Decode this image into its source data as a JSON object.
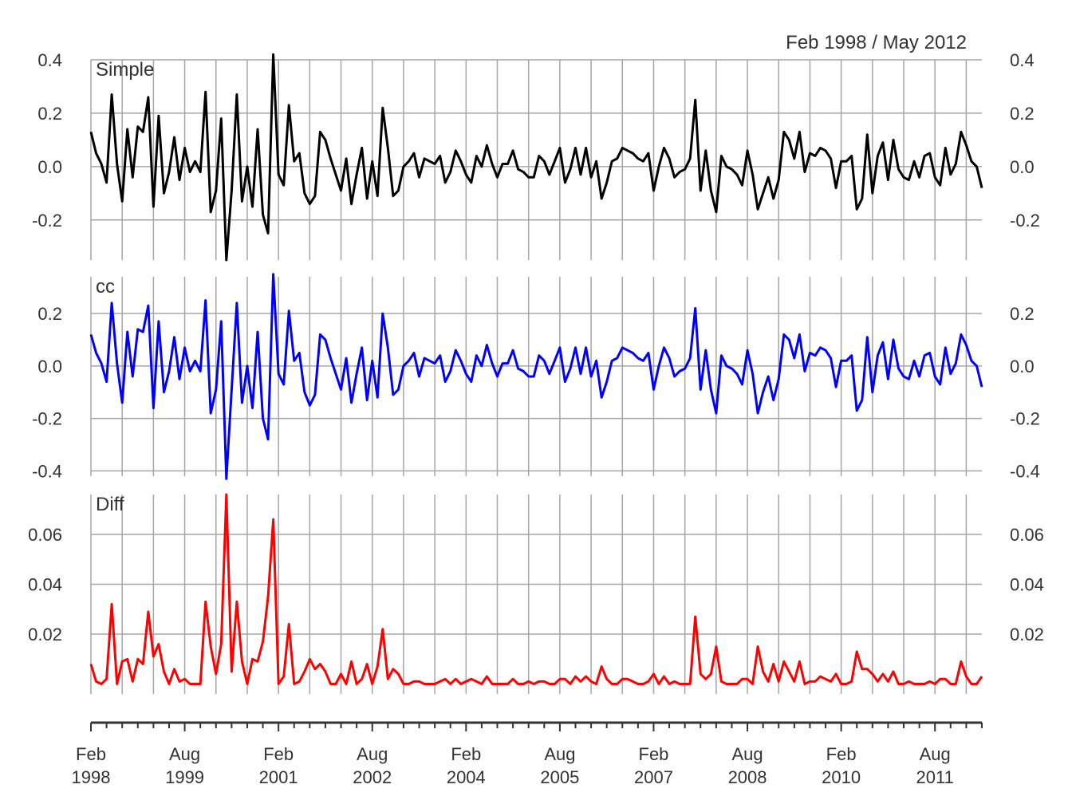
{
  "range_label": "Feb 1998 / May 2012",
  "chart_data": [
    {
      "type": "line",
      "panel": "Simple",
      "color": "#000000",
      "ylim": [
        -0.35,
        0.4
      ],
      "yticks": [
        -0.2,
        0.0,
        0.2,
        0.4
      ],
      "ytick_labels": [
        "-0.2",
        "0.0",
        "0.2",
        "0.4"
      ],
      "series": [
        {
          "values": [
            0.13,
            0.05,
            0.01,
            -0.06,
            0.27,
            0.01,
            -0.13,
            0.14,
            -0.04,
            0.15,
            0.13,
            0.26,
            -0.15,
            0.19,
            -0.1,
            -0.02,
            0.11,
            -0.05,
            0.07,
            -0.02,
            0.02,
            -0.02,
            0.28,
            -0.17,
            -0.09,
            0.18,
            -0.35,
            -0.09,
            0.27,
            -0.13,
            0.0,
            -0.15,
            0.14,
            -0.18,
            -0.25,
            0.42,
            -0.03,
            -0.07,
            0.23,
            0.02,
            0.05,
            -0.1,
            -0.14,
            -0.11,
            0.13,
            0.1,
            0.03,
            -0.03,
            -0.09,
            0.03,
            -0.14,
            -0.03,
            0.07,
            -0.12,
            0.02,
            -0.11,
            0.22,
            0.07,
            -0.11,
            -0.09,
            0.0,
            0.02,
            0.05,
            -0.04,
            0.03,
            0.02,
            0.01,
            0.04,
            -0.06,
            -0.02,
            0.06,
            0.02,
            -0.03,
            -0.06,
            0.04,
            0.0,
            0.08,
            0.01,
            -0.04,
            0.01,
            0.01,
            0.06,
            -0.01,
            -0.02,
            -0.04,
            -0.04,
            0.04,
            0.02,
            -0.03,
            0.02,
            0.07,
            -0.06,
            -0.01,
            0.07,
            -0.03,
            0.07,
            -0.04,
            0.02,
            -0.12,
            -0.06,
            0.02,
            0.03,
            0.07,
            0.06,
            0.05,
            0.03,
            0.02,
            0.05,
            -0.09,
            0.0,
            0.07,
            0.03,
            -0.04,
            -0.02,
            -0.01,
            0.03,
            0.25,
            -0.09,
            0.06,
            -0.09,
            -0.17,
            0.04,
            0.0,
            -0.01,
            -0.03,
            -0.07,
            0.06,
            -0.03,
            -0.16,
            -0.1,
            -0.04,
            -0.12,
            -0.05,
            0.13,
            0.1,
            0.03,
            0.13,
            -0.02,
            0.05,
            0.04,
            0.07,
            0.06,
            0.03,
            -0.08,
            0.02,
            0.02,
            0.04,
            -0.16,
            -0.12,
            0.12,
            -0.1,
            0.04,
            0.09,
            -0.05,
            0.1,
            -0.01,
            -0.04,
            -0.05,
            0.02,
            -0.04,
            0.04,
            0.05,
            -0.04,
            -0.07,
            0.07,
            -0.03,
            0.01,
            0.13,
            0.08,
            0.02,
            0.0,
            -0.08
          ]
        }
      ]
    },
    {
      "type": "line",
      "panel": "cc",
      "color": "#0000ff",
      "ylim": [
        -0.42,
        0.34
      ],
      "yticks": [
        -0.4,
        -0.2,
        0.0,
        0.2
      ],
      "ytick_labels": [
        "-0.4",
        "-0.2",
        "0.0",
        "0.2"
      ],
      "series": [
        {
          "values": [
            0.12,
            0.05,
            0.01,
            -0.06,
            0.24,
            0.01,
            -0.14,
            0.13,
            -0.04,
            0.14,
            0.13,
            0.23,
            -0.16,
            0.17,
            -0.1,
            -0.02,
            0.11,
            -0.05,
            0.07,
            -0.02,
            0.02,
            -0.02,
            0.25,
            -0.18,
            -0.09,
            0.17,
            -0.43,
            -0.09,
            0.24,
            -0.14,
            0.0,
            -0.16,
            0.13,
            -0.2,
            -0.28,
            0.35,
            -0.03,
            -0.07,
            0.21,
            0.02,
            0.05,
            -0.1,
            -0.15,
            -0.11,
            0.12,
            0.1,
            0.03,
            -0.03,
            -0.09,
            0.03,
            -0.14,
            -0.03,
            0.07,
            -0.13,
            0.02,
            -0.12,
            0.2,
            0.07,
            -0.11,
            -0.09,
            0.0,
            0.02,
            0.05,
            -0.04,
            0.03,
            0.02,
            0.01,
            0.04,
            -0.06,
            -0.02,
            0.06,
            0.02,
            -0.03,
            -0.06,
            0.04,
            0.0,
            0.08,
            0.01,
            -0.04,
            0.01,
            0.01,
            0.06,
            -0.01,
            -0.02,
            -0.04,
            -0.04,
            0.04,
            0.02,
            -0.03,
            0.02,
            0.07,
            -0.06,
            -0.01,
            0.07,
            -0.03,
            0.07,
            -0.04,
            0.02,
            -0.12,
            -0.06,
            0.02,
            0.03,
            0.07,
            0.06,
            0.05,
            0.03,
            0.02,
            0.05,
            -0.09,
            0.0,
            0.07,
            0.03,
            -0.04,
            -0.02,
            -0.01,
            0.03,
            0.22,
            -0.09,
            0.06,
            -0.09,
            -0.18,
            0.04,
            0.0,
            -0.01,
            -0.03,
            -0.07,
            0.06,
            -0.03,
            -0.18,
            -0.1,
            -0.04,
            -0.13,
            -0.05,
            0.12,
            0.1,
            0.03,
            0.12,
            -0.02,
            0.05,
            0.04,
            0.07,
            0.06,
            0.03,
            -0.08,
            0.02,
            0.02,
            0.04,
            -0.17,
            -0.13,
            0.11,
            -0.1,
            0.04,
            0.09,
            -0.05,
            0.1,
            -0.01,
            -0.04,
            -0.05,
            0.02,
            -0.04,
            0.04,
            0.05,
            -0.04,
            -0.07,
            0.07,
            -0.03,
            0.01,
            0.12,
            0.08,
            0.02,
            0.0,
            -0.08
          ]
        }
      ]
    },
    {
      "type": "line",
      "panel": "Diff",
      "color": "#ff0000",
      "ylim": [
        -0.004,
        0.076
      ],
      "yticks": [
        0.02,
        0.04,
        0.06
      ],
      "ytick_labels": [
        "0.02",
        "0.04",
        "0.06"
      ],
      "series": [
        {
          "values": [
            0.008,
            0.001,
            0.0,
            0.002,
            0.032,
            0.0,
            0.009,
            0.01,
            0.001,
            0.01,
            0.008,
            0.029,
            0.011,
            0.016,
            0.005,
            0.0,
            0.006,
            0.001,
            0.002,
            0.0,
            0.0,
            0.0,
            0.033,
            0.015,
            0.004,
            0.016,
            0.076,
            0.005,
            0.033,
            0.009,
            0.0,
            0.01,
            0.009,
            0.017,
            0.035,
            0.066,
            0.0,
            0.003,
            0.024,
            0.0,
            0.001,
            0.005,
            0.01,
            0.006,
            0.008,
            0.005,
            0.0,
            0.0,
            0.004,
            0.0,
            0.009,
            0.0,
            0.002,
            0.008,
            0.0,
            0.007,
            0.022,
            0.002,
            0.006,
            0.004,
            0.0,
            0.0,
            0.001,
            0.001,
            0.0,
            0.0,
            0.0,
            0.001,
            0.002,
            0.0,
            0.002,
            0.0,
            0.001,
            0.002,
            0.001,
            0.0,
            0.003,
            0.0,
            0.0,
            0.0,
            0.0,
            0.002,
            0.0,
            0.0,
            0.001,
            0.0,
            0.001,
            0.001,
            0.0,
            0.0,
            0.002,
            0.002,
            0.0,
            0.003,
            0.001,
            0.003,
            0.001,
            0.0,
            0.007,
            0.002,
            0.0,
            0.0,
            0.002,
            0.002,
            0.001,
            0.0,
            0.0,
            0.001,
            0.004,
            0.0,
            0.003,
            0.0,
            0.001,
            0.0,
            0.0,
            0.0,
            0.027,
            0.004,
            0.002,
            0.004,
            0.015,
            0.001,
            0.0,
            0.0,
            0.0,
            0.002,
            0.002,
            0.0,
            0.015,
            0.005,
            0.001,
            0.008,
            0.001,
            0.009,
            0.005,
            0.001,
            0.009,
            0.0,
            0.001,
            0.001,
            0.003,
            0.002,
            0.001,
            0.004,
            0.0,
            0.0,
            0.001,
            0.013,
            0.006,
            0.006,
            0.004,
            0.001,
            0.004,
            0.001,
            0.005,
            0.0,
            0.0,
            0.001,
            0.0,
            0.0,
            0.0,
            0.001,
            0.0,
            0.002,
            0.002,
            0.0,
            0.0,
            0.009,
            0.003,
            0.0,
            0.0,
            0.003
          ]
        }
      ]
    }
  ],
  "x_axis": {
    "start": "Feb 1998",
    "end": "May 2012",
    "tick_labels": [
      {
        "month": "Feb",
        "year": "1998"
      },
      {
        "month": "Aug",
        "year": "1999"
      },
      {
        "month": "Feb",
        "year": "2001"
      },
      {
        "month": "Aug",
        "year": "2002"
      },
      {
        "month": "Feb",
        "year": "2004"
      },
      {
        "month": "Aug",
        "year": "2005"
      },
      {
        "month": "Feb",
        "year": "2007"
      },
      {
        "month": "Aug",
        "year": "2008"
      },
      {
        "month": "Feb",
        "year": "2010"
      },
      {
        "month": "Aug",
        "year": "2011"
      }
    ]
  }
}
